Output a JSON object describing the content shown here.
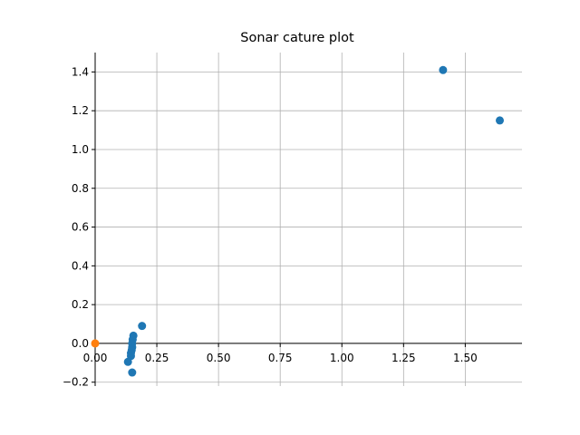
{
  "chart_data": {
    "type": "scatter",
    "title": "Sonar cature plot",
    "xlabel": "",
    "ylabel": "",
    "xlim": [
      0.0,
      1.73
    ],
    "ylim": [
      -0.22,
      1.5
    ],
    "xticks": [
      0.0,
      0.25,
      0.5,
      0.75,
      1.0,
      1.25,
      1.5
    ],
    "xtick_labels": [
      "0.00",
      "0.25",
      "0.50",
      "0.75",
      "1.00",
      "1.25",
      "1.50"
    ],
    "yticks": [
      -0.2,
      0.0,
      0.2,
      0.4,
      0.6,
      0.8,
      1.0,
      1.2,
      1.4
    ],
    "ytick_labels": [
      "−0.2",
      "0.0",
      "0.2",
      "0.4",
      "0.6",
      "0.8",
      "1.0",
      "1.2",
      "1.4"
    ],
    "grid": true,
    "spines": "centered at origin (left and bottom only)",
    "series": [
      {
        "color": "#1f77b4",
        "points": [
          {
            "x": 1.41,
            "y": 1.41
          },
          {
            "x": 1.64,
            "y": 1.15
          },
          {
            "x": 0.19,
            "y": 0.09
          },
          {
            "x": 0.155,
            "y": 0.04
          },
          {
            "x": 0.152,
            "y": 0.02
          },
          {
            "x": 0.15,
            "y": 0.0
          },
          {
            "x": 0.15,
            "y": -0.02
          },
          {
            "x": 0.148,
            "y": -0.035
          },
          {
            "x": 0.145,
            "y": -0.05
          },
          {
            "x": 0.145,
            "y": -0.065
          },
          {
            "x": 0.133,
            "y": -0.095
          },
          {
            "x": 0.15,
            "y": -0.15
          }
        ]
      },
      {
        "color": "#ff7f0e",
        "points": [
          {
            "x": 0.0,
            "y": 0.0
          }
        ]
      }
    ]
  }
}
